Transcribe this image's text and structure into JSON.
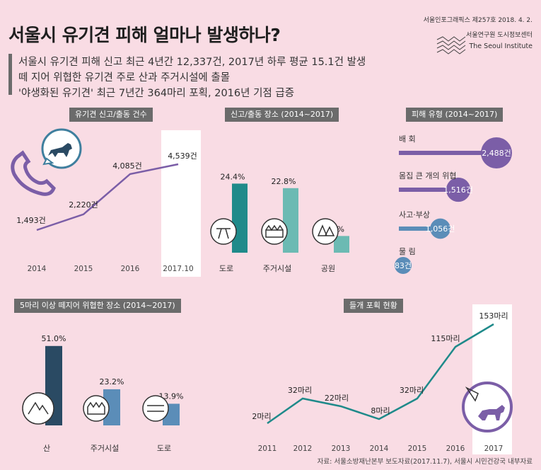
{
  "title": "서울시 유기견 피해 얼마나 발생하나?",
  "publisher": {
    "issue": "서울인포그래픽스 제257호 2018. 4. 2.",
    "institute_ko": "서울연구원 도시정보센터",
    "institute_en": "The Seoul Institute"
  },
  "summary": [
    "서울시 유기견 피해 신고 최근 4년간 12,337건, 2017년 하루 평균 15.1건 발생",
    "떼 지어 위협한 유기견 주로 산과 주거시설에 출몰",
    "'야생화된 유기견' 최근 7년간 364마리 포획, 2016년 기점 급증"
  ],
  "source": "자료: 서울소방재난본부 보도자료(2017.11.7), 서울시 시민건강국 내부자료",
  "colors": {
    "background": "#f9dce4",
    "header": "#6b6b6b",
    "purple": "#7b5ea7",
    "teal_dark": "#1f8a8a",
    "teal_light": "#6cbab3",
    "navy": "#2a4a63",
    "steel": "#5b8db8"
  },
  "chart_data": [
    {
      "type": "line",
      "title": "유기견 신고/출동 건수",
      "categories": [
        "2014",
        "2015",
        "2016",
        "2017.10"
      ],
      "values": [
        1493,
        2220,
        4085,
        4539
      ],
      "value_labels": [
        "1,493건",
        "2,220건",
        "4,085건",
        "4,539건"
      ],
      "highlight": "2017.10",
      "icon": "phone-dog-icon"
    },
    {
      "type": "bar",
      "title": "신고/출동 장소 (2014~2017)",
      "categories": [
        "도로",
        "주거시설",
        "공원"
      ],
      "values": [
        24.4,
        22.8,
        5.9
      ],
      "value_labels": [
        "24.4%",
        "22.8%",
        "5.9%"
      ],
      "icons": [
        "road-icon",
        "house-icon",
        "tree-icon"
      ]
    },
    {
      "type": "bar",
      "title": "피해 유형 (2014~2017)",
      "categories": [
        "배 회",
        "몸집 큰 개의 위협",
        "사고·부상",
        "물 림"
      ],
      "values": [
        2488,
        1516,
        1056,
        83
      ],
      "value_labels": [
        "2,488건",
        "1,516건",
        "1,056건",
        "83건"
      ]
    },
    {
      "type": "bar",
      "title": "5마리 이상 떼지어 위협한 장소 (2014~2017)",
      "categories": [
        "산",
        "주거시설",
        "도로"
      ],
      "values": [
        51.0,
        23.2,
        13.9
      ],
      "value_labels": [
        "51.0%",
        "23.2%",
        "13.9%"
      ],
      "icons": [
        "mountain-icon",
        "house-icon",
        "road-icon"
      ]
    },
    {
      "type": "line",
      "title": "들개 포획 현황",
      "categories": [
        "2011",
        "2012",
        "2013",
        "2014",
        "2015",
        "2016",
        "2017"
      ],
      "values": [
        2,
        32,
        22,
        8,
        32,
        115,
        153
      ],
      "value_labels": [
        "2마리",
        "32마리",
        "22마리",
        "8마리",
        "32마리",
        "115마리",
        "153마리"
      ],
      "highlight": "2017",
      "icon": "net-dog-icon"
    }
  ]
}
